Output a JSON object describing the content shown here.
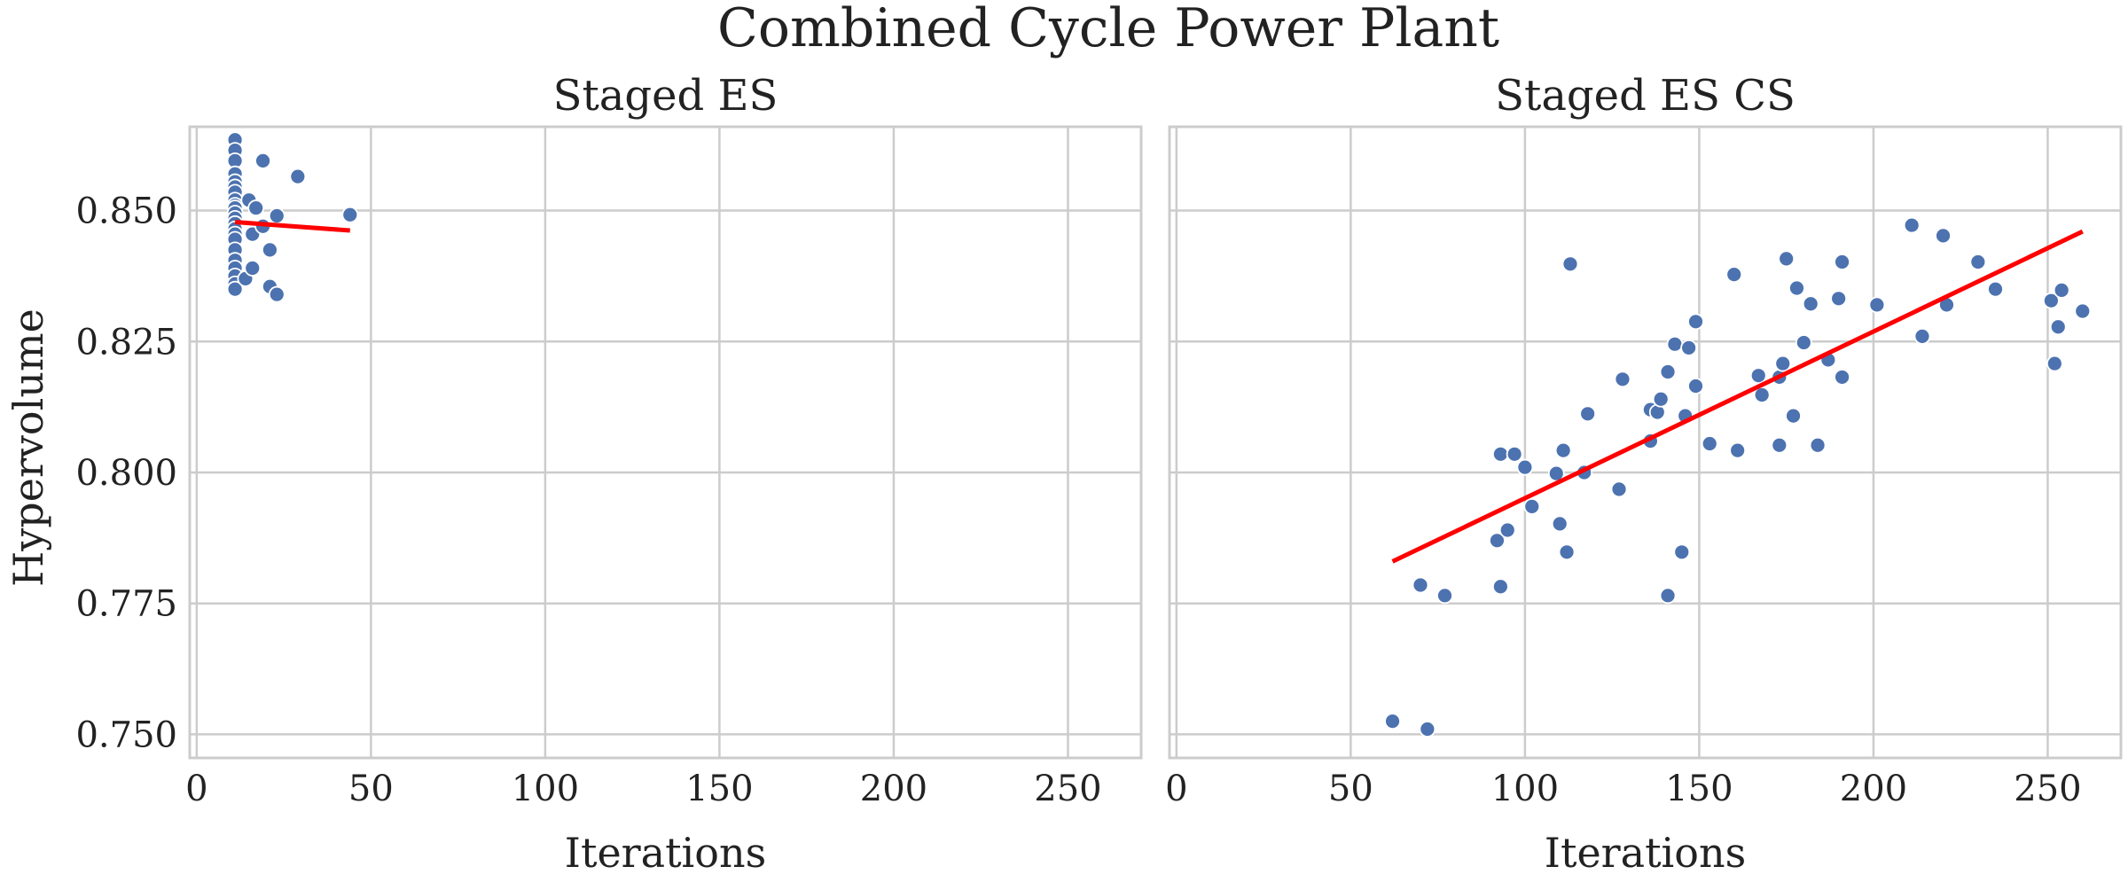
{
  "chart_data": {
    "type": "scatter",
    "title": "Combined Cycle Power Plant",
    "ylabel": "Hypervolume",
    "ylim": [
      0.7455,
      0.866
    ],
    "yticks": [
      0.75,
      0.775,
      0.8,
      0.825,
      0.85
    ],
    "ytick_labels": [
      "0.750",
      "0.775",
      "0.800",
      "0.825",
      "0.850"
    ],
    "xlim": [
      -2,
      271
    ],
    "xticks": [
      0,
      50,
      100,
      150,
      200,
      250
    ],
    "xtick_labels": [
      "0",
      "50",
      "100",
      "150",
      "200",
      "250"
    ],
    "grid": true,
    "sharey": true,
    "colors": {
      "points": "#4c72b0",
      "point_edge": "#ffffff",
      "fit_line": "#ff0000",
      "grid": "#cccccc",
      "spine": "#cccccc"
    },
    "panels": [
      {
        "title": "Staged ES",
        "xlabel": "Iterations",
        "points": [
          [
            11,
            0.8635
          ],
          [
            11,
            0.8615
          ],
          [
            11,
            0.8595
          ],
          [
            11,
            0.857
          ],
          [
            11,
            0.8555
          ],
          [
            11,
            0.8545
          ],
          [
            11,
            0.8535
          ],
          [
            11,
            0.852
          ],
          [
            11,
            0.851
          ],
          [
            11,
            0.8505
          ],
          [
            11,
            0.8495
          ],
          [
            11,
            0.8485
          ],
          [
            11,
            0.8475
          ],
          [
            11,
            0.8465
          ],
          [
            11,
            0.8455
          ],
          [
            11,
            0.8445
          ],
          [
            11,
            0.8425
          ],
          [
            11,
            0.8405
          ],
          [
            11,
            0.839
          ],
          [
            11,
            0.8375
          ],
          [
            11,
            0.836
          ],
          [
            11,
            0.835
          ],
          [
            14,
            0.837
          ],
          [
            15,
            0.852
          ],
          [
            16,
            0.839
          ],
          [
            16,
            0.8455
          ],
          [
            17,
            0.8505
          ],
          [
            19,
            0.8595
          ],
          [
            19,
            0.847
          ],
          [
            21,
            0.8425
          ],
          [
            21,
            0.8355
          ],
          [
            23,
            0.849
          ],
          [
            23,
            0.834
          ],
          [
            29,
            0.8565
          ],
          [
            44,
            0.8492
          ]
        ],
        "fit": {
          "x": [
            11,
            44
          ],
          "y": [
            0.8478,
            0.8462
          ]
        }
      },
      {
        "title": "Staged ES CS",
        "xlabel": "Iterations",
        "points": [
          [
            62,
            0.7525
          ],
          [
            72,
            0.751
          ],
          [
            70,
            0.7785
          ],
          [
            77,
            0.7765
          ],
          [
            92,
            0.787
          ],
          [
            93,
            0.7782
          ],
          [
            93,
            0.8035
          ],
          [
            95,
            0.789
          ],
          [
            97,
            0.8035
          ],
          [
            100,
            0.801
          ],
          [
            102,
            0.7935
          ],
          [
            109,
            0.7998
          ],
          [
            110,
            0.7902
          ],
          [
            111,
            0.8042
          ],
          [
            112,
            0.7848
          ],
          [
            113,
            0.8398
          ],
          [
            117,
            0.8
          ],
          [
            118,
            0.8112
          ],
          [
            127,
            0.7968
          ],
          [
            128,
            0.8178
          ],
          [
            136,
            0.806
          ],
          [
            136,
            0.812
          ],
          [
            138,
            0.8115
          ],
          [
            139,
            0.814
          ],
          [
            141,
            0.8192
          ],
          [
            141,
            0.7765
          ],
          [
            143,
            0.8245
          ],
          [
            145,
            0.7848
          ],
          [
            146,
            0.8108
          ],
          [
            147,
            0.8238
          ],
          [
            149,
            0.8288
          ],
          [
            149,
            0.8165
          ],
          [
            153,
            0.8055
          ],
          [
            160,
            0.8378
          ],
          [
            161,
            0.8042
          ],
          [
            167,
            0.8185
          ],
          [
            168,
            0.8148
          ],
          [
            173,
            0.8052
          ],
          [
            173,
            0.8182
          ],
          [
            174,
            0.8208
          ],
          [
            175,
            0.8408
          ],
          [
            177,
            0.8108
          ],
          [
            178,
            0.8352
          ],
          [
            180,
            0.8248
          ],
          [
            182,
            0.8322
          ],
          [
            184,
            0.8052
          ],
          [
            187,
            0.8215
          ],
          [
            190,
            0.8332
          ],
          [
            191,
            0.8402
          ],
          [
            191,
            0.8182
          ],
          [
            201,
            0.832
          ],
          [
            211,
            0.8472
          ],
          [
            214,
            0.826
          ],
          [
            220,
            0.8452
          ],
          [
            221,
            0.832
          ],
          [
            230,
            0.8402
          ],
          [
            235,
            0.835
          ],
          [
            251,
            0.8328
          ],
          [
            252,
            0.8208
          ],
          [
            253,
            0.8278
          ],
          [
            254,
            0.8348
          ],
          [
            260,
            0.8308
          ]
        ],
        "fit": {
          "x": [
            62,
            260
          ],
          "y": [
            0.783,
            0.846
          ]
        }
      }
    ]
  }
}
